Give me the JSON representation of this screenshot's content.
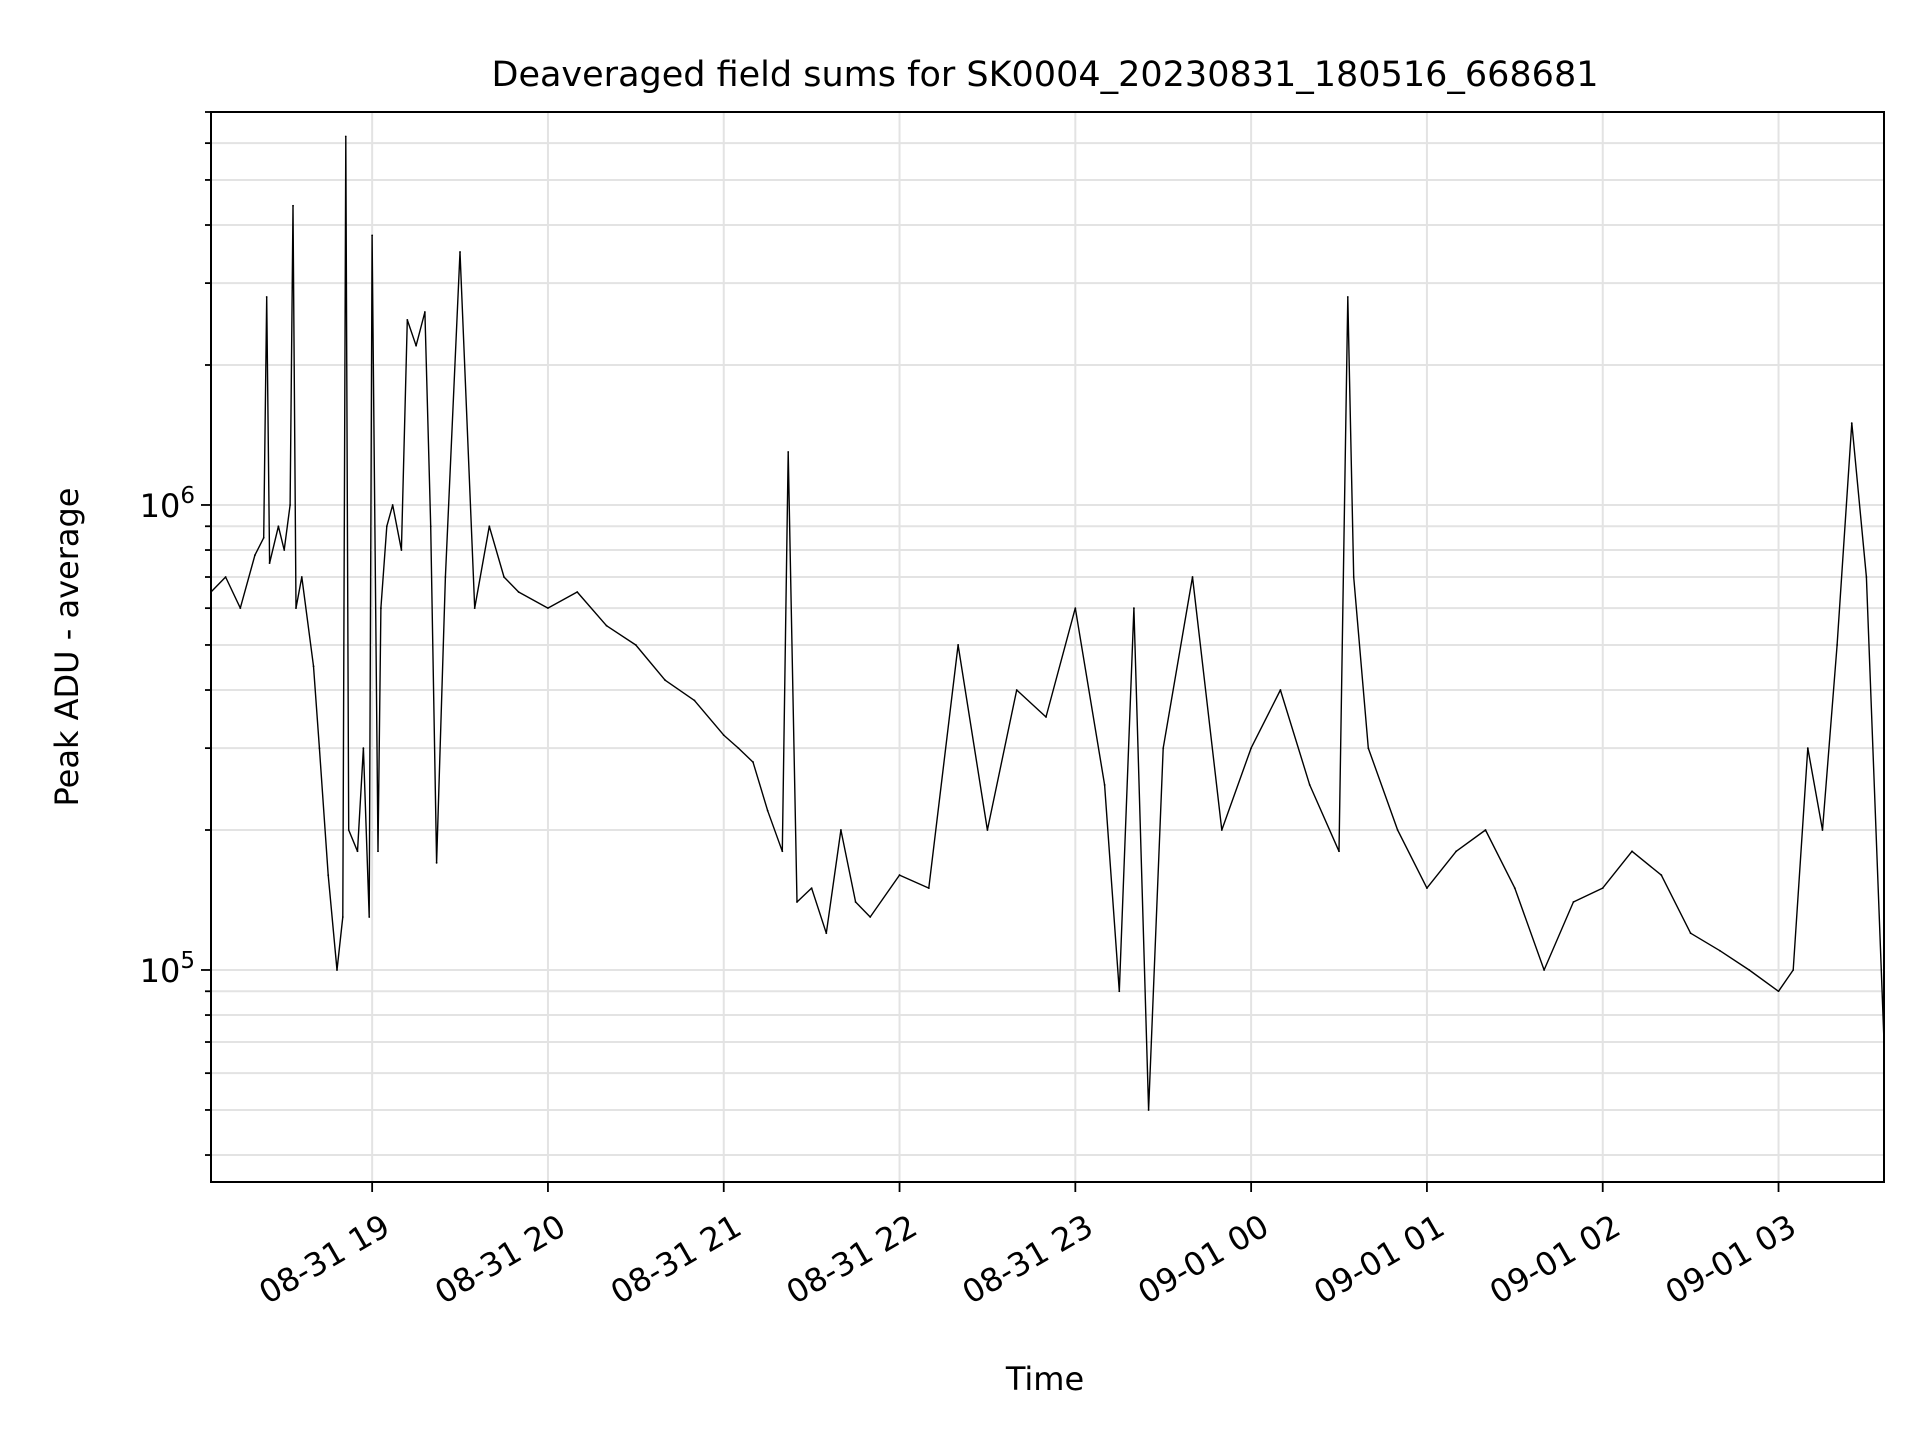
{
  "chart_data": {
    "type": "line",
    "title": "Deaveraged field sums for SK0004_20230831_180516_668681",
    "xlabel": "Time",
    "ylabel": "Peak ADU - average",
    "yscale": "log",
    "xlim": [
      "2023-08-31 18:05",
      "2023-09-01 03:36"
    ],
    "ylim": [
      35000,
      7000000
    ],
    "grid": "on (major and minor)",
    "x_tick_labels": [
      "08-31 19",
      "08-31 20",
      "08-31 21",
      "08-31 22",
      "08-31 23",
      "09-01 00",
      "09-01 01",
      "09-01 02",
      "09-01 03"
    ],
    "y_tick_labels": [
      {
        "base": "10",
        "exp": "5",
        "value": 100000
      },
      {
        "base": "10",
        "exp": "6",
        "value": 1000000
      }
    ],
    "series": [
      {
        "color": "#000000",
        "x": [
          "2023-08-31 18:05",
          "2023-08-31 18:10",
          "2023-08-31 18:15",
          "2023-08-31 18:20",
          "2023-08-31 18:23",
          "2023-08-31 18:24",
          "2023-08-31 18:25",
          "2023-08-31 18:28",
          "2023-08-31 18:30",
          "2023-08-31 18:32",
          "2023-08-31 18:33",
          "2023-08-31 18:34",
          "2023-08-31 18:36",
          "2023-08-31 18:40",
          "2023-08-31 18:42",
          "2023-08-31 18:45",
          "2023-08-31 18:48",
          "2023-08-31 18:50",
          "2023-08-31 18:51",
          "2023-08-31 18:52",
          "2023-08-31 18:55",
          "2023-08-31 18:57",
          "2023-08-31 18:59",
          "2023-08-31 19:00",
          "2023-08-31 19:02",
          "2023-08-31 19:03",
          "2023-08-31 19:05",
          "2023-08-31 19:07",
          "2023-08-31 19:10",
          "2023-08-31 19:12",
          "2023-08-31 19:15",
          "2023-08-31 19:18",
          "2023-08-31 19:20",
          "2023-08-31 19:22",
          "2023-08-31 19:25",
          "2023-08-31 19:30",
          "2023-08-31 19:35",
          "2023-08-31 19:40",
          "2023-08-31 19:45",
          "2023-08-31 19:50",
          "2023-08-31 20:00",
          "2023-08-31 20:10",
          "2023-08-31 20:20",
          "2023-08-31 20:30",
          "2023-08-31 20:40",
          "2023-08-31 20:50",
          "2023-08-31 21:00",
          "2023-08-31 21:05",
          "2023-08-31 21:10",
          "2023-08-31 21:15",
          "2023-08-31 21:20",
          "2023-08-31 21:22",
          "2023-08-31 21:25",
          "2023-08-31 21:30",
          "2023-08-31 21:35",
          "2023-08-31 21:40",
          "2023-08-31 21:45",
          "2023-08-31 21:50",
          "2023-08-31 22:00",
          "2023-08-31 22:10",
          "2023-08-31 22:20",
          "2023-08-31 22:30",
          "2023-08-31 22:40",
          "2023-08-31 22:50",
          "2023-08-31 23:00",
          "2023-08-31 23:10",
          "2023-08-31 23:15",
          "2023-08-31 23:20",
          "2023-08-31 23:25",
          "2023-08-31 23:30",
          "2023-08-31 23:40",
          "2023-08-31 23:50",
          "2023-09-01 00:00",
          "2023-09-01 00:10",
          "2023-09-01 00:20",
          "2023-09-01 00:30",
          "2023-09-01 00:33",
          "2023-09-01 00:35",
          "2023-09-01 00:40",
          "2023-09-01 00:50",
          "2023-09-01 01:00",
          "2023-09-01 01:10",
          "2023-09-01 01:20",
          "2023-09-01 01:30",
          "2023-09-01 01:40",
          "2023-09-01 01:50",
          "2023-09-01 02:00",
          "2023-09-01 02:10",
          "2023-09-01 02:20",
          "2023-09-01 02:30",
          "2023-09-01 02:40",
          "2023-09-01 02:50",
          "2023-09-01 03:00",
          "2023-09-01 03:05",
          "2023-09-01 03:10",
          "2023-09-01 03:15",
          "2023-09-01 03:20",
          "2023-09-01 03:25",
          "2023-09-01 03:30",
          "2023-09-01 03:36"
        ],
        "y": [
          650000,
          700000,
          600000,
          780000,
          850000,
          2800000,
          750000,
          900000,
          800000,
          1000000,
          4400000,
          600000,
          700000,
          450000,
          300000,
          160000,
          100000,
          130000,
          6200000,
          200000,
          180000,
          300000,
          130000,
          3800000,
          180000,
          600000,
          900000,
          1000000,
          800000,
          2500000,
          2200000,
          2600000,
          900000,
          170000,
          700000,
          3500000,
          600000,
          900000,
          700000,
          650000,
          600000,
          650000,
          550000,
          500000,
          420000,
          380000,
          320000,
          300000,
          280000,
          220000,
          180000,
          1300000,
          140000,
          150000,
          120000,
          200000,
          140000,
          130000,
          160000,
          150000,
          500000,
          200000,
          400000,
          350000,
          600000,
          250000,
          90000,
          600000,
          50000,
          300000,
          700000,
          200000,
          300000,
          400000,
          250000,
          180000,
          2800000,
          700000,
          300000,
          200000,
          150000,
          180000,
          200000,
          150000,
          100000,
          140000,
          150000,
          180000,
          160000,
          120000,
          110000,
          100000,
          90000,
          100000,
          300000,
          200000,
          500000,
          1500000,
          700000,
          70000
        ]
      }
    ]
  }
}
